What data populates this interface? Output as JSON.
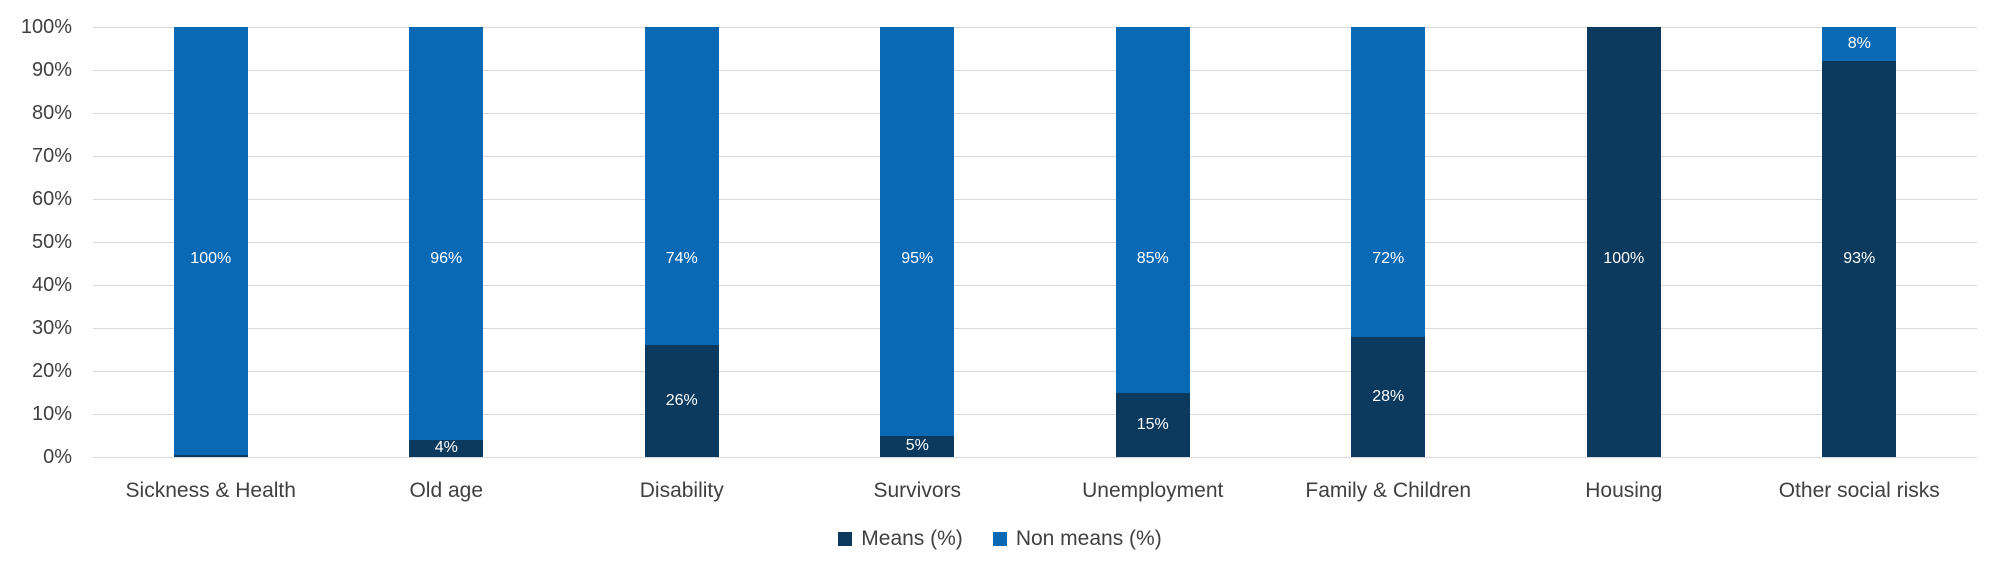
{
  "chart_data": {
    "type": "bar",
    "subtype": "stacked-100-percent-column",
    "title": "",
    "categories": [
      "Sickness & Health",
      "Old age",
      "Disability",
      "Survivors",
      "Unemployment",
      "Family & Children",
      "Housing",
      "Other social risks"
    ],
    "series": [
      {
        "name": "Means (%)",
        "color": "#0C3A5F",
        "values": [
          0.5,
          4,
          26,
          5,
          15,
          28,
          100,
          93
        ],
        "labels": [
          "",
          "4%",
          "26%",
          "5%",
          "15%",
          "28%",
          "100%",
          "93%"
        ]
      },
      {
        "name": "Non means (%)",
        "color": "#0A69B4",
        "values": [
          99.5,
          96,
          74,
          95,
          85,
          72,
          0,
          8
        ],
        "labels": [
          "100%",
          "96%",
          "74%",
          "95%",
          "85%",
          "72%",
          "",
          "8%"
        ]
      }
    ],
    "y_axis": {
      "range": [
        0,
        100
      ],
      "tick_step": 10,
      "tick_labels": [
        "0%",
        "10%",
        "20%",
        "30%",
        "40%",
        "50%",
        "60%",
        "70%",
        "80%",
        "90%",
        "100%"
      ]
    },
    "x_axis": {
      "label": ""
    },
    "grid": true,
    "legend_position": "bottom-center",
    "colors": {
      "background": "#FFFFFF",
      "gridline": "#D9D9D9",
      "axis_text": "#404040",
      "value_label_text": "#FFFFFF"
    }
  }
}
